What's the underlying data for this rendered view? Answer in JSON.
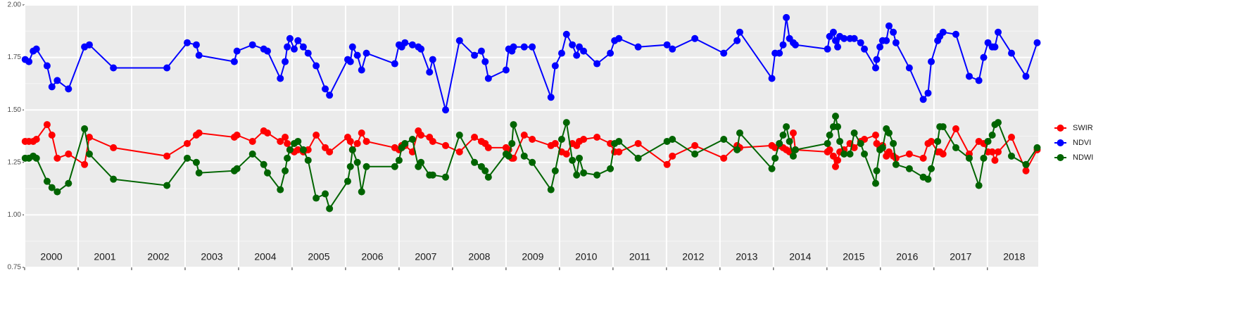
{
  "chart_data": {
    "type": "line",
    "x": [
      2000.01,
      2000.08,
      2000.16,
      2000.22,
      2000.42,
      2000.51,
      2000.61,
      2000.82,
      2001.12,
      2001.21,
      2001.66,
      2002.66,
      2003.04,
      2003.21,
      2003.26,
      2003.92,
      2003.97,
      2004.26,
      2004.47,
      2004.54,
      2004.78,
      2004.87,
      2004.91,
      2004.96,
      2005.04,
      2005.11,
      2005.21,
      2005.3,
      2005.45,
      2005.62,
      2005.7,
      2006.04,
      2006.09,
      2006.13,
      2006.22,
      2006.3,
      2006.39,
      2006.92,
      2007.0,
      2007.05,
      2007.11,
      2007.25,
      2007.36,
      2007.41,
      2007.57,
      2007.63,
      2007.87,
      2008.13,
      2008.41,
      2008.54,
      2008.61,
      2008.67,
      2009.0,
      2009.05,
      2009.11,
      2009.14,
      2009.34,
      2009.49,
      2009.84,
      2009.92,
      2010.04,
      2010.13,
      2010.24,
      2010.32,
      2010.37,
      2010.45,
      2010.7,
      2010.95,
      2011.03,
      2011.11,
      2011.47,
      2012.01,
      2012.11,
      2012.53,
      2013.07,
      2013.32,
      2013.37,
      2013.97,
      2014.03,
      2014.11,
      2014.18,
      2014.24,
      2014.3,
      2014.37,
      2014.41,
      2015.01,
      2015.05,
      2015.12,
      2015.16,
      2015.2,
      2015.24,
      2015.32,
      2015.43,
      2015.51,
      2015.63,
      2015.7,
      2015.91,
      2015.93,
      2015.99,
      2016.04,
      2016.11,
      2016.16,
      2016.24,
      2016.29,
      2016.54,
      2016.8,
      2016.89,
      2016.95,
      2017.07,
      2017.11,
      2017.17,
      2017.41,
      2017.66,
      2017.84,
      2017.93,
      2018.01,
      2018.09,
      2018.14,
      2018.2,
      2018.45,
      2018.72,
      2018.93
    ],
    "series": [
      {
        "name": "SWIR",
        "color": "#ff0000",
        "values": [
          1.35,
          1.35,
          1.35,
          1.36,
          1.43,
          1.38,
          1.27,
          1.29,
          1.24,
          1.37,
          1.32,
          1.28,
          1.34,
          1.38,
          1.39,
          1.37,
          1.38,
          1.35,
          1.4,
          1.39,
          1.35,
          1.37,
          1.34,
          1.31,
          1.3,
          1.31,
          1.3,
          1.31,
          1.38,
          1.32,
          1.3,
          1.37,
          1.35,
          1.31,
          1.34,
          1.39,
          1.35,
          1.32,
          1.31,
          1.33,
          1.33,
          1.3,
          1.4,
          1.38,
          1.37,
          1.35,
          1.33,
          1.3,
          1.37,
          1.35,
          1.34,
          1.32,
          1.32,
          1.31,
          1.27,
          1.27,
          1.38,
          1.36,
          1.33,
          1.34,
          1.3,
          1.29,
          1.34,
          1.33,
          1.35,
          1.36,
          1.37,
          1.34,
          1.3,
          1.3,
          1.34,
          1.24,
          1.28,
          1.33,
          1.27,
          1.33,
          1.32,
          1.33,
          1.32,
          1.33,
          1.32,
          1.31,
          1.3,
          1.39,
          1.31,
          1.3,
          1.31,
          1.28,
          1.23,
          1.26,
          1.3,
          1.31,
          1.34,
          1.32,
          1.35,
          1.36,
          1.38,
          1.34,
          1.32,
          1.33,
          1.28,
          1.3,
          1.28,
          1.27,
          1.29,
          1.27,
          1.34,
          1.35,
          1.3,
          1.3,
          1.29,
          1.41,
          1.29,
          1.35,
          1.34,
          1.3,
          1.3,
          1.26,
          1.3,
          1.37,
          1.21,
          1.31
        ]
      },
      {
        "name": "NDVI",
        "color": "#0000ff",
        "values": [
          1.74,
          1.73,
          1.78,
          1.79,
          1.71,
          1.61,
          1.64,
          1.6,
          1.8,
          1.81,
          1.7,
          1.7,
          1.82,
          1.81,
          1.76,
          1.73,
          1.78,
          1.81,
          1.79,
          1.78,
          1.65,
          1.73,
          1.8,
          1.84,
          1.79,
          1.83,
          1.8,
          1.77,
          1.71,
          1.6,
          1.57,
          1.74,
          1.73,
          1.8,
          1.76,
          1.69,
          1.77,
          1.72,
          1.81,
          1.8,
          1.82,
          1.81,
          1.8,
          1.79,
          1.68,
          1.74,
          1.5,
          1.83,
          1.76,
          1.78,
          1.73,
          1.65,
          1.69,
          1.79,
          1.78,
          1.8,
          1.8,
          1.8,
          1.56,
          1.71,
          1.77,
          1.86,
          1.81,
          1.76,
          1.8,
          1.78,
          1.72,
          1.77,
          1.83,
          1.84,
          1.8,
          1.81,
          1.79,
          1.84,
          1.77,
          1.83,
          1.87,
          1.65,
          1.77,
          1.77,
          1.81,
          1.94,
          1.84,
          1.82,
          1.81,
          1.79,
          1.85,
          1.87,
          1.83,
          1.8,
          1.85,
          1.84,
          1.84,
          1.84,
          1.82,
          1.79,
          1.7,
          1.74,
          1.8,
          1.83,
          1.83,
          1.9,
          1.87,
          1.82,
          1.7,
          1.55,
          1.58,
          1.73,
          1.83,
          1.85,
          1.87,
          1.86,
          1.66,
          1.64,
          1.75,
          1.82,
          1.8,
          1.8,
          1.87,
          1.77,
          1.66,
          1.82
        ]
      },
      {
        "name": "NDWI",
        "color": "#006400",
        "values": [
          1.27,
          1.27,
          1.28,
          1.27,
          1.16,
          1.13,
          1.11,
          1.15,
          1.41,
          1.29,
          1.17,
          1.14,
          1.27,
          1.25,
          1.2,
          1.21,
          1.22,
          1.29,
          1.24,
          1.2,
          1.12,
          1.21,
          1.27,
          1.31,
          1.34,
          1.35,
          1.31,
          1.26,
          1.08,
          1.1,
          1.03,
          1.16,
          1.23,
          1.31,
          1.25,
          1.11,
          1.23,
          1.23,
          1.26,
          1.32,
          1.34,
          1.36,
          1.23,
          1.25,
          1.19,
          1.19,
          1.18,
          1.38,
          1.25,
          1.23,
          1.21,
          1.18,
          1.29,
          1.28,
          1.34,
          1.43,
          1.28,
          1.25,
          1.12,
          1.21,
          1.36,
          1.44,
          1.26,
          1.19,
          1.27,
          1.2,
          1.19,
          1.22,
          1.34,
          1.35,
          1.27,
          1.35,
          1.36,
          1.29,
          1.36,
          1.31,
          1.39,
          1.22,
          1.27,
          1.34,
          1.38,
          1.42,
          1.35,
          1.28,
          1.31,
          1.34,
          1.38,
          1.42,
          1.47,
          1.42,
          1.35,
          1.29,
          1.29,
          1.39,
          1.34,
          1.29,
          1.15,
          1.21,
          1.31,
          1.32,
          1.41,
          1.39,
          1.34,
          1.24,
          1.22,
          1.18,
          1.17,
          1.22,
          1.35,
          1.42,
          1.42,
          1.32,
          1.27,
          1.14,
          1.27,
          1.35,
          1.38,
          1.43,
          1.44,
          1.28,
          1.24,
          1.32
        ]
      }
    ],
    "xlim": [
      2000.0,
      2018.95
    ],
    "xticks": [
      2000,
      2001,
      2002,
      2003,
      2004,
      2005,
      2006,
      2007,
      2008,
      2009,
      2010,
      2011,
      2012,
      2013,
      2014,
      2015,
      2016,
      2017,
      2018
    ],
    "ylim": [
      0.75,
      2.0
    ],
    "yticks": [
      {
        "value": 0.75,
        "label": "0.75"
      },
      {
        "value": 1.0,
        "label": "1.00"
      },
      {
        "value": 1.25,
        "label": "1.25"
      },
      {
        "value": 1.5,
        "label": "1.50"
      },
      {
        "value": 1.75,
        "label": "1.75"
      },
      {
        "value": 2.0,
        "label": "2.00"
      }
    ],
    "grid": true,
    "legend": "right"
  }
}
